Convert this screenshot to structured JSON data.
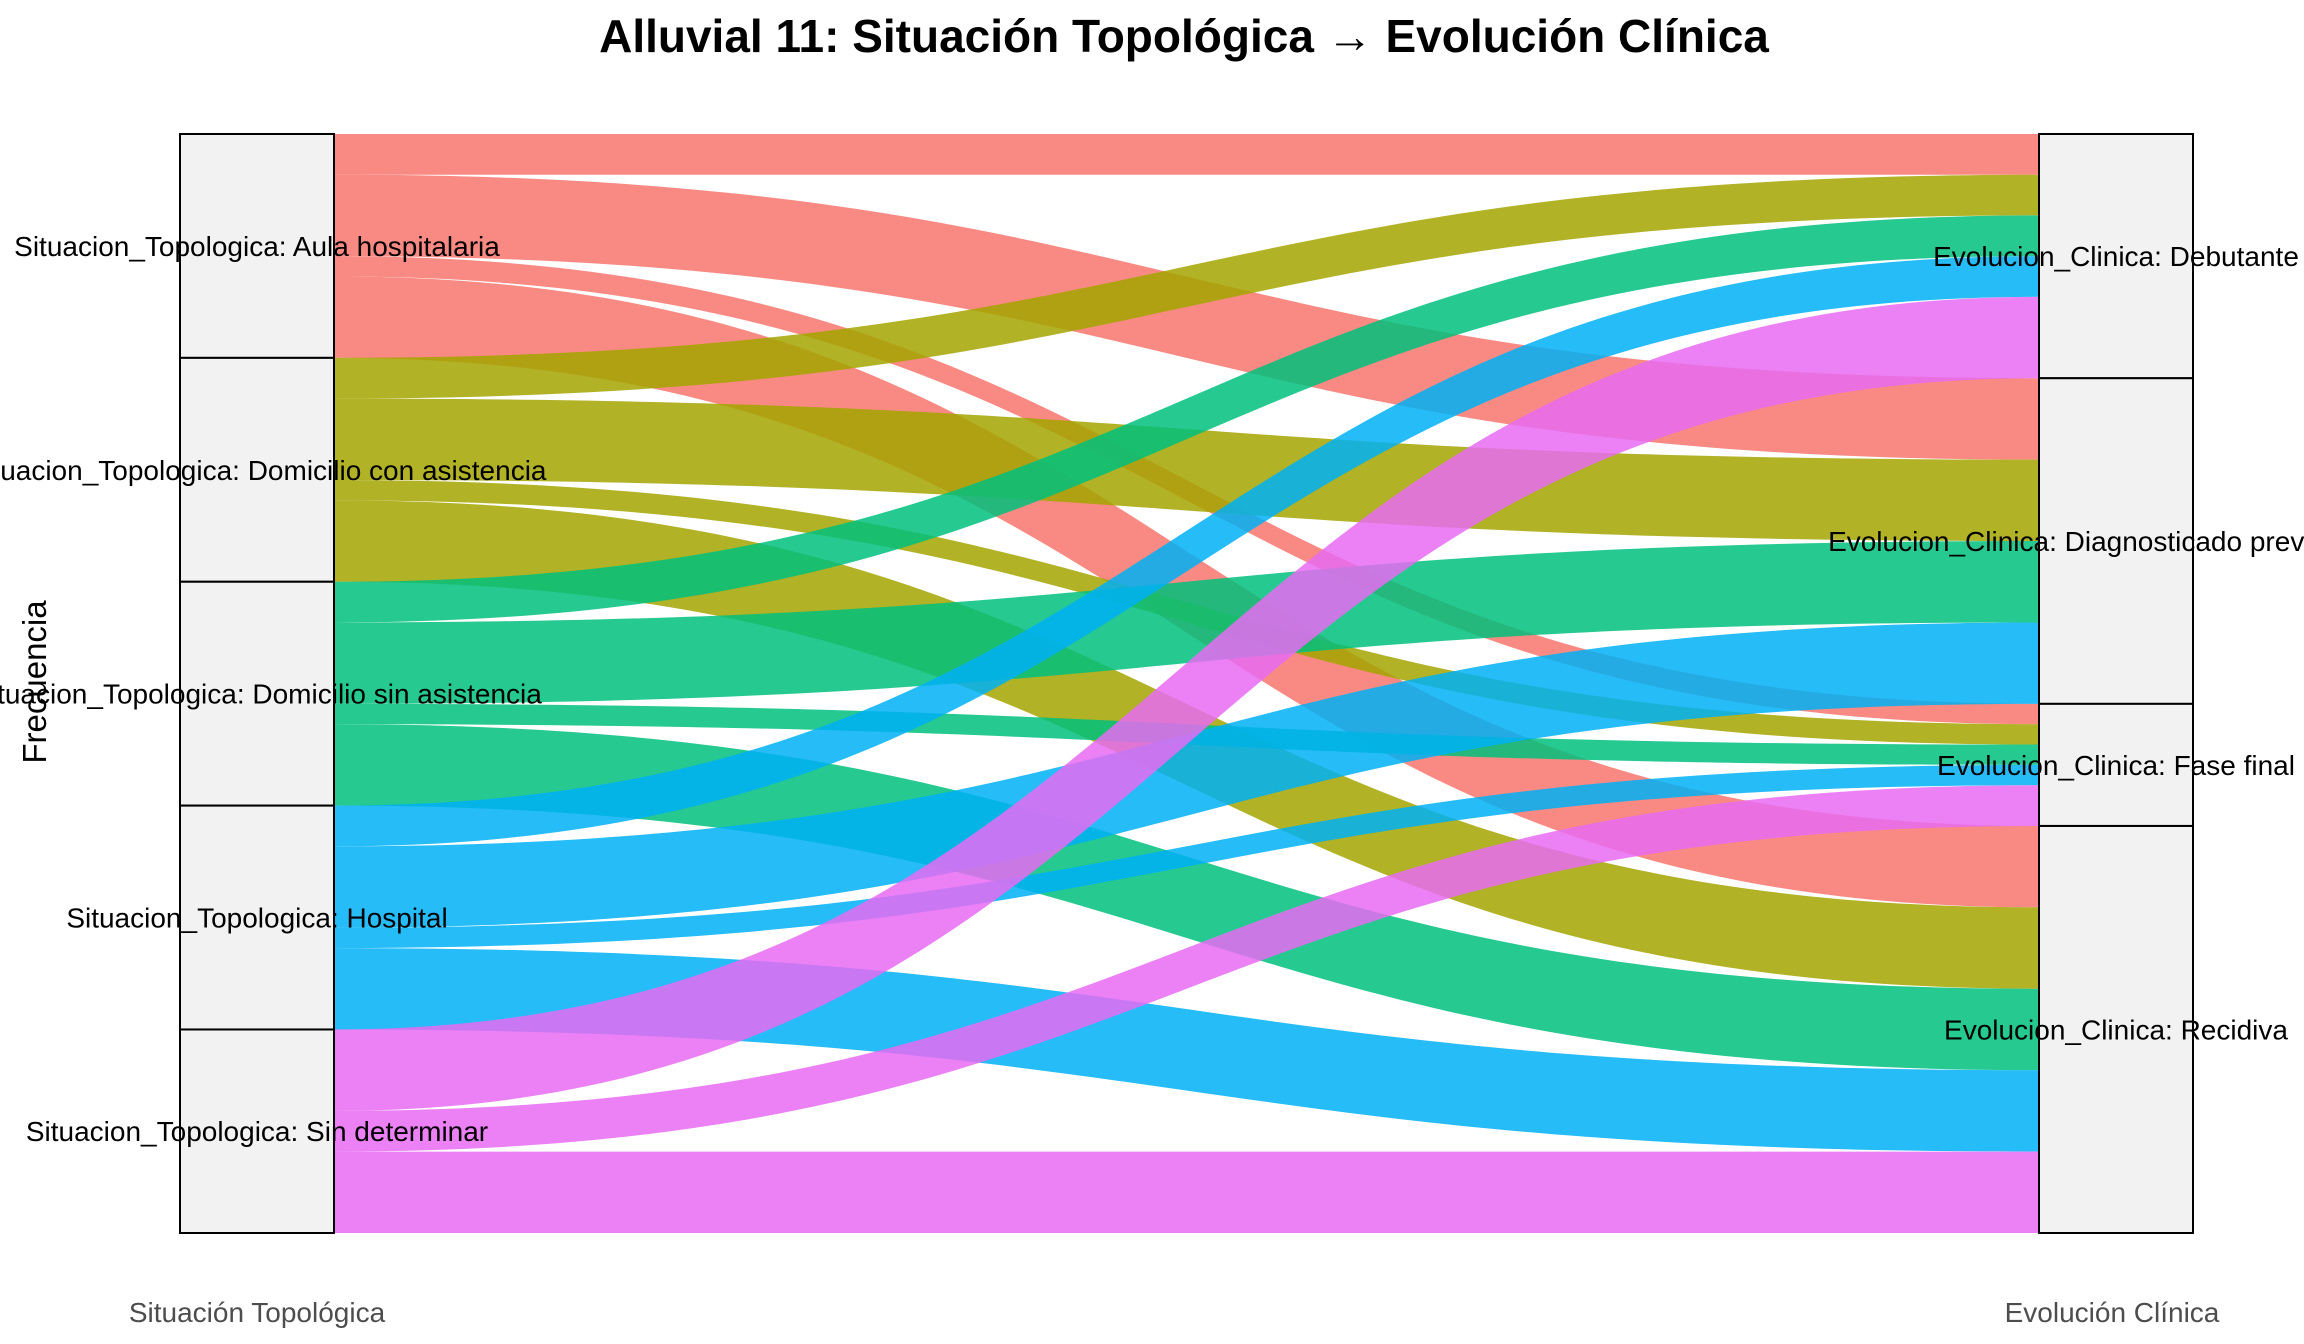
{
  "chart_data": {
    "type": "alluvial",
    "title": "Alluvial 11: Situación Topológica → Evolución Clínica",
    "ylabel": "Frecuencia",
    "axes": [
      {
        "name": "Situación Topológica",
        "strata": [
          {
            "key": "aula",
            "label": "Situacion_Topologica: Aula hospitalaria"
          },
          {
            "key": "dcon",
            "label": "Situacion_Topologica: Domicilio con asistencia"
          },
          {
            "key": "dsin",
            "label": "Situacion_Topologica: Domicilio sin asistencia"
          },
          {
            "key": "hosp",
            "label": "Situacion_Topologica: Hospital"
          },
          {
            "key": "sind",
            "label": "Situacion_Topologica: Sin determinar"
          }
        ]
      },
      {
        "name": "Evolución Clínica",
        "strata": [
          {
            "key": "deb",
            "label": "Evolucion_Clinica: Debutante"
          },
          {
            "key": "diag",
            "label": "Evolucion_Clinica: Diagnosticado previamente"
          },
          {
            "key": "fase",
            "label": "Evolucion_Clinica: Fase final"
          },
          {
            "key": "reci",
            "label": "Evolucion_Clinica: Recidiva"
          }
        ]
      }
    ],
    "fill_by": "Situación Topológica",
    "colors": {
      "aula": "#F8766D",
      "dcon": "#A3A500",
      "dsin": "#00BF7D",
      "hosp": "#00B0F6",
      "sind": "#E76BF3"
    },
    "flows": [
      {
        "from": "aula",
        "to": "deb",
        "value": 1.0
      },
      {
        "from": "aula",
        "to": "diag",
        "value": 2.0
      },
      {
        "from": "aula",
        "to": "fase",
        "value": 0.5
      },
      {
        "from": "aula",
        "to": "reci",
        "value": 2.0
      },
      {
        "from": "dcon",
        "to": "deb",
        "value": 1.0
      },
      {
        "from": "dcon",
        "to": "diag",
        "value": 2.0
      },
      {
        "from": "dcon",
        "to": "fase",
        "value": 0.5
      },
      {
        "from": "dcon",
        "to": "reci",
        "value": 2.0
      },
      {
        "from": "dsin",
        "to": "deb",
        "value": 1.0
      },
      {
        "from": "dsin",
        "to": "diag",
        "value": 2.0
      },
      {
        "from": "dsin",
        "to": "fase",
        "value": 0.5
      },
      {
        "from": "dsin",
        "to": "reci",
        "value": 2.0
      },
      {
        "from": "hosp",
        "to": "deb",
        "value": 1.0
      },
      {
        "from": "hosp",
        "to": "diag",
        "value": 2.0
      },
      {
        "from": "hosp",
        "to": "fase",
        "value": 0.5
      },
      {
        "from": "hosp",
        "to": "reci",
        "value": 2.0
      },
      {
        "from": "sind",
        "to": "deb",
        "value": 2.0
      },
      {
        "from": "sind",
        "to": "fase",
        "value": 1.0
      },
      {
        "from": "sind",
        "to": "reci",
        "value": 2.0
      }
    ]
  }
}
